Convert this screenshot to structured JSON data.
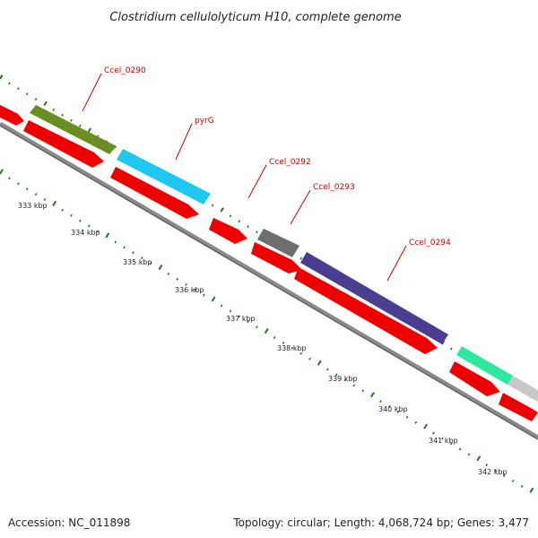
{
  "title": "Clostridium cellulolyticum H10, complete genome",
  "accession": "Accession: NC_011898",
  "summary": "Topology: circular; Length: 4,068,724 bp; Genes: 3,477",
  "colors": {
    "background": "#ffffff",
    "backbone": "#8a8a8a",
    "cds": "#ee0000",
    "label": "#cc0000",
    "tick": "#1a7a1a",
    "text": "#222222"
  },
  "scale_ticks": [
    "333 kbp",
    "334 kbp",
    "335 kbp",
    "336 kbp",
    "337 kbp",
    "338 kbp",
    "339 kbp",
    "340 kbp",
    "341 kbp",
    "342 kbp"
  ],
  "gene_labels": [
    "Ccel_0290",
    "pyrG",
    "Ccel_0292",
    "Ccel_0293",
    "Ccel_0294"
  ],
  "feature_colors": {
    "olive": "#6b8e23",
    "sky": "#1ec8f0",
    "gray": "#6e6e6e",
    "indigo": "#4b3d8f",
    "mint": "#2ee8a0",
    "light": "#c8c8c8"
  }
}
